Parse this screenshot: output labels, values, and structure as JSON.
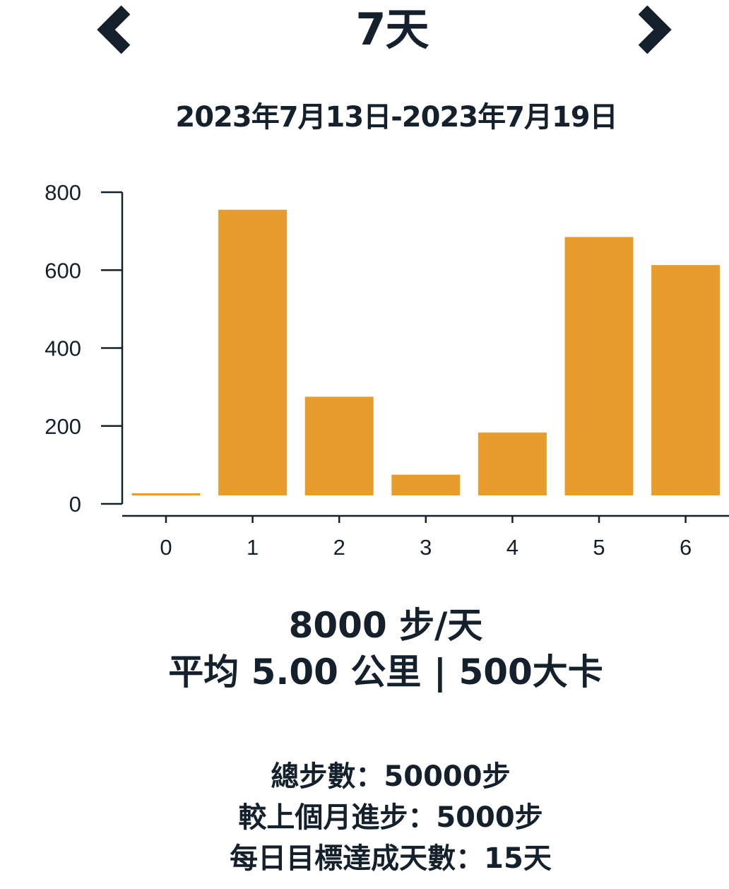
{
  "header": {
    "period_title": "7天",
    "prev_icon": "chevron-left-icon",
    "next_icon": "chevron-right-icon",
    "icon_color": "#14202b"
  },
  "date_range": "2023年7月13日-2023年7月19日",
  "chart_data": {
    "type": "bar",
    "categories": [
      "0",
      "1",
      "2",
      "3",
      "4",
      "5",
      "6"
    ],
    "values": [
      5,
      755,
      275,
      75,
      183,
      685,
      613
    ],
    "y_ticks": [
      "0",
      "200",
      "400",
      "600",
      "800"
    ],
    "ylim": [
      -20,
      800
    ],
    "bar_color": "#e79c2c",
    "axis_color": "#14202b",
    "grid": false,
    "title": "",
    "xlabel": "",
    "ylabel": ""
  },
  "summary": {
    "steps_per_day": "8000 步/天",
    "avg_line": "平均 5.00 公里 | 500大卡"
  },
  "stats": {
    "total_steps": "總步數：50000步",
    "vs_last_month": "較上個月進步：5000步",
    "goal_days": "每日目標達成天數：15天"
  }
}
